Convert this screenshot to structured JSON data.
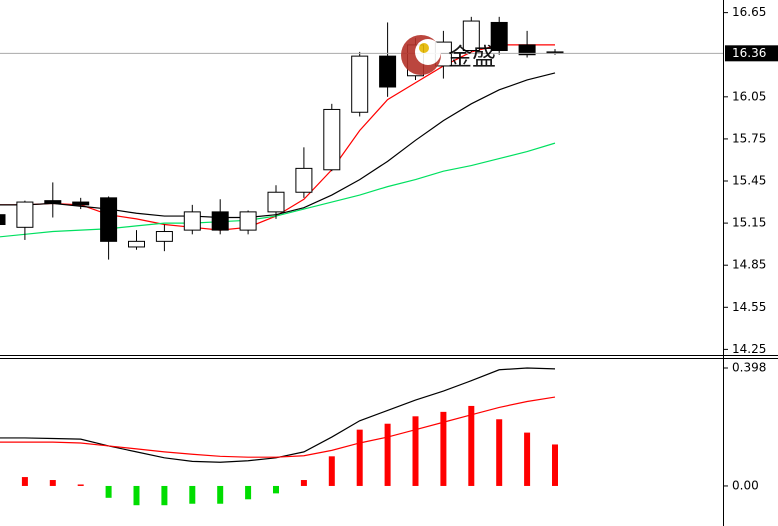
{
  "watermark": "金盛",
  "chart_data": [
    {
      "type": "candlestick",
      "open": [
        15.21,
        15.12,
        15.31,
        15.3,
        15.33,
        14.98,
        15.02,
        15.1,
        15.23,
        15.1,
        15.23,
        15.37,
        15.53,
        15.94,
        16.34,
        16.2,
        16.27,
        16.38,
        16.58,
        16.42,
        16.37
      ],
      "high": [
        15.22,
        15.31,
        15.44,
        15.33,
        15.34,
        15.1,
        15.14,
        15.28,
        15.32,
        15.24,
        15.42,
        15.69,
        16.0,
        16.37,
        16.58,
        16.47,
        16.52,
        16.62,
        16.62,
        16.52,
        16.39
      ],
      "low": [
        15.13,
        15.03,
        15.19,
        15.25,
        14.89,
        14.96,
        14.95,
        15.07,
        15.07,
        15.07,
        15.18,
        15.33,
        15.52,
        15.91,
        16.05,
        16.17,
        16.18,
        16.37,
        16.35,
        16.33,
        16.35
      ],
      "close": [
        15.14,
        15.3,
        15.29,
        15.28,
        15.02,
        15.02,
        15.09,
        15.23,
        15.1,
        15.23,
        15.37,
        15.54,
        15.96,
        16.34,
        16.12,
        16.42,
        16.44,
        16.59,
        16.38,
        16.35,
        16.36
      ],
      "up_color": "#ffffff",
      "down_color": "#000000",
      "outline_color": "#000000",
      "series": [
        {
          "color": "#ff0000",
          "values": [
            15.28,
            15.28,
            15.29,
            15.28,
            15.21,
            15.18,
            15.14,
            15.12,
            15.1,
            15.12,
            15.2,
            15.32,
            15.53,
            15.81,
            16.03,
            16.15,
            16.27,
            16.37,
            16.42,
            16.42,
            16.42
          ]
        },
        {
          "color": "#000000",
          "values": [
            15.28,
            15.28,
            15.29,
            15.27,
            15.25,
            15.22,
            15.2,
            15.2,
            15.19,
            15.19,
            15.21,
            15.26,
            15.35,
            15.46,
            15.59,
            15.74,
            15.88,
            16.0,
            16.1,
            16.17,
            16.22
          ]
        },
        {
          "color": "#00e060",
          "values": [
            15.05,
            15.07,
            15.09,
            15.1,
            15.11,
            15.13,
            15.15,
            15.15,
            15.16,
            15.17,
            15.2,
            15.25,
            15.3,
            15.35,
            15.41,
            15.46,
            15.52,
            15.56,
            15.61,
            15.66,
            15.72
          ]
        }
      ],
      "last_price": 16.36,
      "ylim": [
        14.21,
        16.74
      ],
      "yticks": [
        14.25,
        14.55,
        14.85,
        15.15,
        15.45,
        15.75,
        16.05,
        16.65
      ]
    },
    {
      "type": "macd",
      "values": [
        null,
        0.03,
        0.02,
        0.005,
        -0.04,
        -0.065,
        -0.065,
        -0.06,
        -0.06,
        -0.045,
        -0.025,
        0.02,
        0.1,
        0.19,
        0.21,
        0.235,
        0.25,
        0.27,
        0.225,
        0.18,
        0.14
      ],
      "up_color": "#ff0000",
      "down_color": "#00dd00",
      "series": [
        {
          "color": "#000000",
          "values": [
            0.162,
            0.162,
            0.16,
            0.158,
            0.135,
            0.115,
            0.095,
            0.083,
            0.08,
            0.085,
            0.095,
            0.115,
            0.165,
            0.22,
            0.255,
            0.29,
            0.32,
            0.355,
            0.392,
            0.398,
            0.395
          ]
        },
        {
          "color": "#ff0000",
          "values": [
            0.148,
            0.148,
            0.148,
            0.145,
            0.135,
            0.125,
            0.115,
            0.107,
            0.1,
            0.097,
            0.097,
            0.102,
            0.12,
            0.145,
            0.165,
            0.19,
            0.215,
            0.24,
            0.265,
            0.285,
            0.3
          ]
        }
      ],
      "ylim": [
        -0.125,
        0.425
      ],
      "yticks": [
        {
          "value": 0,
          "label": "0.00"
        },
        0.398
      ]
    }
  ]
}
